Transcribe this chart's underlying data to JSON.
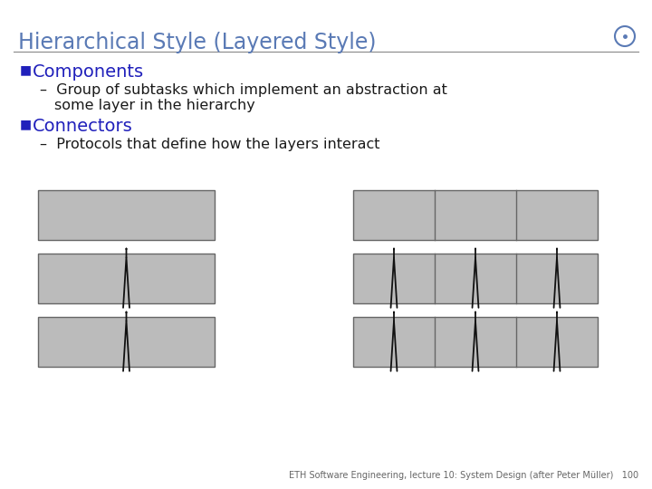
{
  "title": "Hierarchical Style (Layered Style)",
  "title_color": "#5a7ab5",
  "title_fontsize": 17,
  "bullet_color": "#2020bb",
  "bullet1": "Components",
  "bullet1_sub1_line1": "Group of subtasks which implement an abstraction at",
  "bullet1_sub1_line2": "some layer in the hierarchy",
  "bullet2": "Connectors",
  "bullet2_sub1": "Protocols that define how the layers interact",
  "body_text_color": "#1a1a1a",
  "bullet_text_fontsize": 14,
  "sub_text_fontsize": 11.5,
  "footer": "ETH Software Engineering, lecture 10: System Design (after Peter Müller)   100",
  "footer_fontsize": 7,
  "bg_color": "#ffffff",
  "box_color": "#bbbbbb",
  "box_edge_color": "#666666",
  "arrow_color": "#111111",
  "line_color": "#888888"
}
